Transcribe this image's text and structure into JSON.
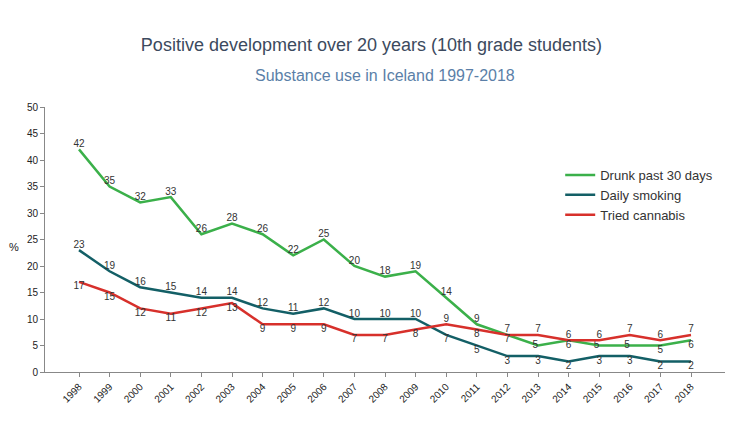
{
  "chart_data": {
    "type": "line",
    "title": "Positive development over 20 years (10th grade students)",
    "subtitle": "Substance use in Iceland 1997-2018",
    "y_label": "%",
    "categories": [
      "1998",
      "1999",
      "2000",
      "2001",
      "2002",
      "2003",
      "2004",
      "2005",
      "2006",
      "2007",
      "2008",
      "2009",
      "2010",
      "2011",
      "2012",
      "2013",
      "2014",
      "2015",
      "2016",
      "2017",
      "2018"
    ],
    "series": [
      {
        "name": "Drunk past 30 days",
        "color": "#3bb04a",
        "values": [
          42,
          35,
          32,
          33,
          26,
          28,
          26,
          22,
          25,
          20,
          18,
          19,
          14,
          9,
          7,
          5,
          6,
          5,
          5,
          5,
          6
        ]
      },
      {
        "name": "Daily smoking",
        "color": "#135f66",
        "values": [
          23,
          19,
          16,
          15,
          14,
          14,
          12,
          11,
          12,
          10,
          10,
          10,
          7,
          5,
          3,
          3,
          2,
          3,
          3,
          2,
          2
        ]
      },
      {
        "name": "Tried cannabis",
        "color": "#d7302b",
        "values": [
          17,
          15,
          12,
          11,
          12,
          13,
          9,
          9,
          9,
          7,
          7,
          8,
          9,
          8,
          7,
          7,
          6,
          6,
          7,
          6,
          7
        ]
      }
    ],
    "ylim": [
      0,
      50
    ],
    "yticks": [
      0,
      5,
      10,
      15,
      20,
      25,
      30,
      35,
      40,
      45,
      50
    ],
    "grid": false,
    "legend": "right",
    "data_labels": true
  }
}
